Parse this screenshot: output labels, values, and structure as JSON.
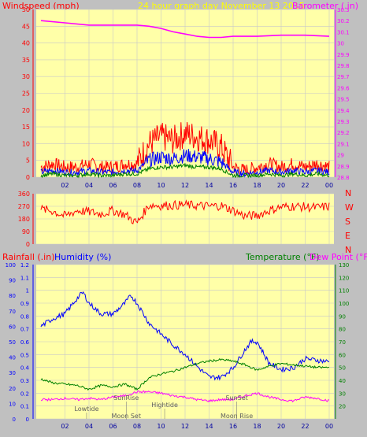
{
  "header": {
    "left_title": "Windspeed (mph)",
    "center_title": "24 hour graph day   November 13 2015",
    "right_title": "Barometer (.in)"
  },
  "lower_header": {
    "rain_label": "Rainfall (.in)",
    "humidity_label": "Humidity (%)",
    "temperature_label": "Temperature (°F)",
    "dewpoint_label": "Dew Point (°F)"
  },
  "colors": {
    "panel_bg": "#ffffa8",
    "frame_bg": "#c0c0c0",
    "wind": "#ff0000",
    "gust_alt": "#0000ff",
    "wind_avg": "#008000",
    "barometer": "#ff00ff",
    "humidity": "#0000ff",
    "temperature": "#008000",
    "dewpoint": "#ff00ff",
    "rain": "#0000ff",
    "grid": "#c8c8c8"
  },
  "chart_data": [
    {
      "type": "line",
      "name": "wind_barometer",
      "x_ticks": [
        "02",
        "04",
        "06",
        "08",
        "10",
        "12",
        "14",
        "16",
        "18",
        "20",
        "22",
        "00"
      ],
      "left_axis": {
        "label": "Windspeed (mph)",
        "range": [
          0,
          50
        ],
        "ticks": [
          "0",
          "5",
          "10",
          "15",
          "20",
          "25",
          "30",
          "35",
          "40",
          "45",
          "50"
        ]
      },
      "right_axis": {
        "label": "Barometer (.in)",
        "range": [
          28.8,
          30.3
        ],
        "ticks": [
          "28.8",
          "28.9",
          "29",
          "29.1",
          "29.2",
          "29.3",
          "29.4",
          "29.5",
          "29.6",
          "29.7",
          "29.8",
          "29.9",
          "30",
          "30.1",
          "30.2",
          "30.3"
        ]
      },
      "series": [
        {
          "color": "#ff0000",
          "x": [
            0,
            1,
            2,
            3,
            4,
            5,
            6,
            7,
            8,
            9,
            10,
            11,
            12,
            13,
            14,
            15,
            16,
            17,
            18,
            19,
            20,
            21,
            22,
            23,
            24
          ],
          "values": [
            3,
            4,
            3,
            3,
            4,
            3,
            3,
            4,
            4,
            10,
            12,
            11,
            13,
            12,
            11,
            9,
            3,
            2,
            3,
            4,
            3,
            4,
            3,
            4,
            3
          ]
        },
        {
          "color": "#0000ff",
          "x": [
            0,
            1,
            2,
            3,
            4,
            5,
            6,
            7,
            8,
            9,
            10,
            11,
            12,
            13,
            14,
            15,
            16,
            17,
            18,
            19,
            20,
            21,
            22,
            23,
            24
          ],
          "values": [
            1.5,
            2,
            1.5,
            1.5,
            2,
            1.5,
            1.5,
            2,
            2,
            5,
            6,
            5.5,
            6.5,
            6,
            5.5,
            4.5,
            1.5,
            1,
            1.5,
            2,
            1.5,
            2,
            1.5,
            2,
            1.5
          ]
        },
        {
          "color": "#008000",
          "x": [
            0,
            1,
            2,
            3,
            4,
            5,
            6,
            7,
            8,
            9,
            10,
            11,
            12,
            13,
            14,
            15,
            16,
            17,
            18,
            19,
            20,
            21,
            22,
            23,
            24
          ],
          "values": [
            0.5,
            1,
            0.5,
            0.5,
            1,
            0.5,
            0.5,
            1,
            1,
            2.5,
            3,
            3,
            3.5,
            3,
            3,
            2.5,
            0.5,
            0.5,
            0.5,
            1,
            0.5,
            1,
            0.5,
            1,
            0.5
          ]
        },
        {
          "color": "#ff00ff",
          "axis": "right",
          "x": [
            0,
            2,
            4,
            6,
            8,
            9,
            10,
            11,
            12,
            13,
            14,
            15,
            16,
            18,
            20,
            22,
            24
          ],
          "values": [
            30.2,
            30.18,
            30.16,
            30.16,
            30.16,
            30.15,
            30.13,
            30.1,
            30.08,
            30.06,
            30.05,
            30.05,
            30.06,
            30.06,
            30.07,
            30.07,
            30.06
          ]
        }
      ]
    },
    {
      "type": "line",
      "name": "wind_direction",
      "left_axis": {
        "range": [
          0,
          360
        ],
        "ticks": [
          "0",
          "90",
          "180",
          "270",
          "360"
        ]
      },
      "right_labels": [
        "N",
        "W",
        "S",
        "E",
        "N"
      ],
      "series": [
        {
          "color": "#ff0000",
          "x": [
            0,
            1,
            2,
            3,
            4,
            5,
            6,
            7,
            8,
            9,
            10,
            12,
            14,
            15,
            16,
            17,
            18,
            19,
            20,
            21,
            22,
            23,
            24
          ],
          "values": [
            250,
            235,
            200,
            240,
            230,
            215,
            240,
            210,
            150,
            280,
            275,
            280,
            270,
            275,
            240,
            200,
            205,
            240,
            265,
            270,
            265,
            260,
            270
          ]
        }
      ]
    },
    {
      "type": "line",
      "name": "temperature_humidity",
      "x_ticks": [
        "02",
        "04",
        "06",
        "08",
        "10",
        "12",
        "14",
        "16",
        "18",
        "20",
        "22",
        "00"
      ],
      "rain_axis": {
        "label": "Rainfall (.in)",
        "range": [
          0,
          1.2
        ],
        "ticks": [
          "0",
          "0.1",
          "0.2",
          "0.3",
          "0.4",
          "0.5",
          "0.6",
          "0.7",
          "0.8",
          "0.9",
          "1",
          "1.1",
          "1.2"
        ]
      },
      "humidity_axis": {
        "label": "Humidity (%)",
        "range": [
          0,
          100
        ],
        "ticks": [
          "0",
          "10",
          "20",
          "30",
          "40",
          "50",
          "60",
          "70",
          "80",
          "90",
          "100"
        ]
      },
      "temp_axis": {
        "label": "Temperature (°F)",
        "range": [
          10,
          130
        ],
        "ticks": [
          "20",
          "30",
          "40",
          "50",
          "60",
          "70",
          "80",
          "90",
          "100",
          "110",
          "120",
          "130"
        ]
      },
      "events": [
        {
          "label": "Lowtide",
          "x": 3.8,
          "pos": "low"
        },
        {
          "label": "SunRise",
          "x": 7.1,
          "pos": "high"
        },
        {
          "label": "Moon Set",
          "x": 7.1,
          "pos": "bottom"
        },
        {
          "label": "Hightide",
          "x": 10.3,
          "pos": "mid"
        },
        {
          "label": "SunSet",
          "x": 16.3,
          "pos": "high"
        },
        {
          "label": "Moon Rise",
          "x": 16.3,
          "pos": "bottom"
        }
      ],
      "series": [
        {
          "color": "#0000ff",
          "axis": "humidity",
          "x": [
            0,
            1,
            2,
            3,
            3.5,
            4,
            5,
            6,
            7,
            7.5,
            8,
            9,
            10,
            11,
            12,
            13,
            14,
            15,
            16,
            17,
            17.5,
            18,
            19,
            20,
            21,
            22,
            23,
            24
          ],
          "values": [
            60,
            65,
            68,
            78,
            82,
            75,
            68,
            68,
            75,
            80,
            75,
            62,
            55,
            48,
            42,
            34,
            27,
            27,
            33,
            45,
            50,
            50,
            36,
            32,
            33,
            39,
            38,
            37
          ]
        },
        {
          "color": "#008000",
          "axis": "temp",
          "x": [
            0,
            1,
            2,
            3,
            4,
            5,
            6,
            7,
            8,
            9,
            10,
            11,
            12,
            13,
            14,
            15,
            16,
            17,
            18,
            19,
            20,
            21,
            22,
            23,
            24
          ],
          "values": [
            41,
            38,
            37,
            36,
            33,
            36,
            35,
            37,
            33,
            42,
            45,
            47,
            50,
            53,
            55,
            56,
            55,
            52,
            48,
            51,
            53,
            52,
            51,
            50,
            50
          ]
        },
        {
          "color": "#ff00ff",
          "axis": "temp",
          "x": [
            0,
            1,
            2,
            3,
            4,
            5,
            6,
            7,
            8,
            9,
            10,
            11,
            12,
            13,
            14,
            15,
            16,
            17,
            18,
            19,
            20,
            21,
            22,
            23,
            24
          ],
          "values": [
            25,
            25,
            26,
            25,
            26,
            25,
            27,
            28,
            31,
            31,
            30,
            28,
            27,
            25,
            24,
            25,
            25,
            28,
            30,
            27,
            25,
            24,
            27,
            26,
            24
          ]
        }
      ]
    }
  ]
}
